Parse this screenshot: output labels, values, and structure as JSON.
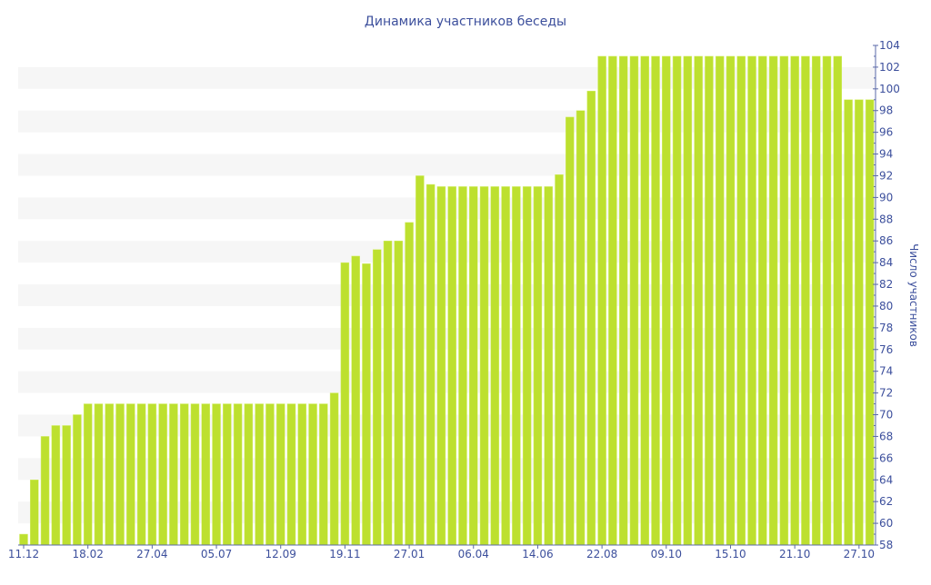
{
  "chart_data": {
    "type": "bar",
    "title": "Динамика участников беседы",
    "xlabel": "",
    "ylabel": "Число участников",
    "ylim": [
      58,
      104
    ],
    "y_ticks": [
      58,
      60,
      62,
      64,
      66,
      68,
      70,
      72,
      74,
      76,
      78,
      80,
      82,
      84,
      86,
      88,
      90,
      92,
      94,
      96,
      98,
      100,
      102,
      104
    ],
    "y_axis_position": "right",
    "grid": "alternating horizontal bands",
    "x_tick_labels": [
      {
        "index": 0,
        "label": "11.12"
      },
      {
        "index": 6,
        "label": "18.02"
      },
      {
        "index": 12,
        "label": "27.04"
      },
      {
        "index": 18,
        "label": "05.07"
      },
      {
        "index": 24,
        "label": "12.09"
      },
      {
        "index": 30,
        "label": "19.11"
      },
      {
        "index": 36,
        "label": "27.01"
      },
      {
        "index": 42,
        "label": "06.04"
      },
      {
        "index": 48,
        "label": "14.06"
      },
      {
        "index": 54,
        "label": "22.08"
      },
      {
        "index": 60,
        "label": "09.10"
      },
      {
        "index": 66,
        "label": "15.10"
      },
      {
        "index": 72,
        "label": "21.10"
      },
      {
        "index": 78,
        "label": "27.10"
      }
    ],
    "values": [
      59,
      64,
      68,
      69,
      69,
      70,
      71,
      71,
      71,
      71,
      71,
      71,
      71,
      71,
      71,
      71,
      71,
      71,
      71,
      71,
      71,
      71,
      71,
      71,
      71,
      71,
      71,
      71,
      71,
      72,
      84,
      84.6,
      83.9,
      85.2,
      86,
      86,
      87.7,
      92,
      91.2,
      91,
      91,
      91,
      91,
      91,
      91,
      91,
      91,
      91,
      91,
      91,
      92.1,
      97.4,
      98,
      99.8,
      103,
      103,
      103,
      103,
      103,
      103,
      103,
      103,
      103,
      103,
      103,
      103,
      103,
      103,
      103,
      103,
      103,
      103,
      103,
      103,
      103,
      103,
      103,
      99,
      99,
      99
    ],
    "colors": {
      "bar": "#bde02f",
      "axis": "#5a68a8",
      "text": "#3c4f9c",
      "band": "#f6f6f6"
    }
  }
}
